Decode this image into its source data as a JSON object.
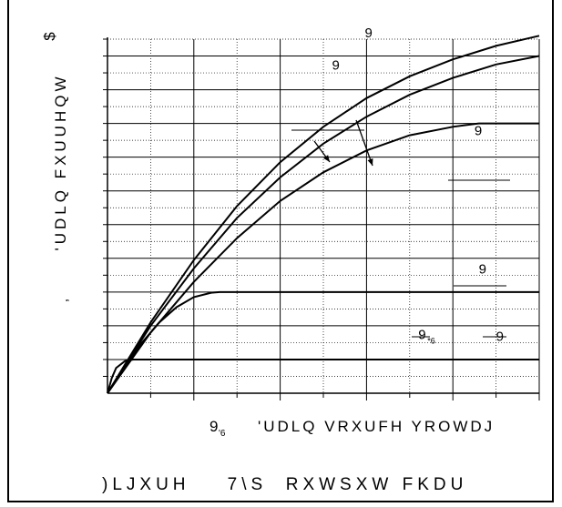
{
  "chart_data": {
    "type": "line",
    "title": "",
    "ylabel_glyphs": "'UDLQ FXUUHQW",
    "ylabel_unit_glyph": "$",
    "ylabel_prefix_glyph": ",",
    "xlabel_var_glyph": "9",
    "xlabel_var_sub": "'6",
    "xlabel_glyphs": "'UDLQ VRXUFH YROWDJ",
    "xlim": [
      0,
      5
    ],
    "ylim": [
      0,
      10.5
    ],
    "grid": true,
    "series": [
      {
        "x": [
          0,
          0.05,
          0.1,
          0.2,
          0.3,
          0.4,
          0.5,
          1,
          1.5,
          2,
          2.5,
          3,
          3.5,
          4,
          4.5,
          5
        ],
        "y": [
          0,
          0.45,
          0.75,
          0.95,
          1.0,
          1.0,
          1.0,
          1.0,
          1.0,
          1.0,
          1.0,
          1.0,
          1.0,
          1.0,
          1.0,
          1.0
        ]
      },
      {
        "x": [
          0,
          0.2,
          0.4,
          0.6,
          0.8,
          1.0,
          1.2,
          1.3,
          1.5,
          2,
          2.5,
          3,
          3.5,
          4,
          4.5,
          5
        ],
        "y": [
          0,
          0.8,
          1.5,
          2.1,
          2.55,
          2.85,
          2.98,
          3.0,
          3.0,
          3.0,
          3.0,
          3.0,
          3.0,
          3.0,
          3.0,
          3.0
        ]
      },
      {
        "x": [
          0,
          0.5,
          1,
          1.5,
          2,
          2.5,
          3,
          3.5,
          4,
          4.3,
          4.5,
          5
        ],
        "y": [
          0,
          1.8,
          3.3,
          4.6,
          5.7,
          6.55,
          7.2,
          7.65,
          7.9,
          8.0,
          8.0,
          8.0
        ]
      },
      {
        "x": [
          0,
          0.5,
          1,
          1.5,
          2,
          2.5,
          3,
          3.5,
          4,
          4.5,
          5
        ],
        "y": [
          0,
          2.0,
          3.7,
          5.2,
          6.4,
          7.4,
          8.2,
          8.85,
          9.35,
          9.75,
          10.0
        ]
      },
      {
        "x": [
          0,
          0.5,
          1,
          1.5,
          2,
          2.5,
          3,
          3.5,
          4,
          4.5,
          5
        ],
        "y": [
          0,
          2.1,
          3.95,
          5.55,
          6.85,
          7.9,
          8.75,
          9.4,
          9.9,
          10.3,
          10.6
        ]
      }
    ],
    "annotations": [
      {
        "label": "9",
        "x": 2.98,
        "y": 10.55
      },
      {
        "label": "9",
        "x": 2.6,
        "y": 9.6
      },
      {
        "label": "9",
        "x": 4.25,
        "y": 7.65
      },
      {
        "label": "9",
        "x": 4.3,
        "y": 3.55
      },
      {
        "label": "9",
        "x": 3.6,
        "y": 1.6,
        "sub": "*6"
      },
      {
        "label": "9",
        "x": 4.5,
        "y": 1.55
      }
    ]
  },
  "caption": {
    "figure_glyphs": ")LJXUH",
    "number_glyphs": "7\\S",
    "rest_glyphs": "RXWSXW FKDU"
  }
}
